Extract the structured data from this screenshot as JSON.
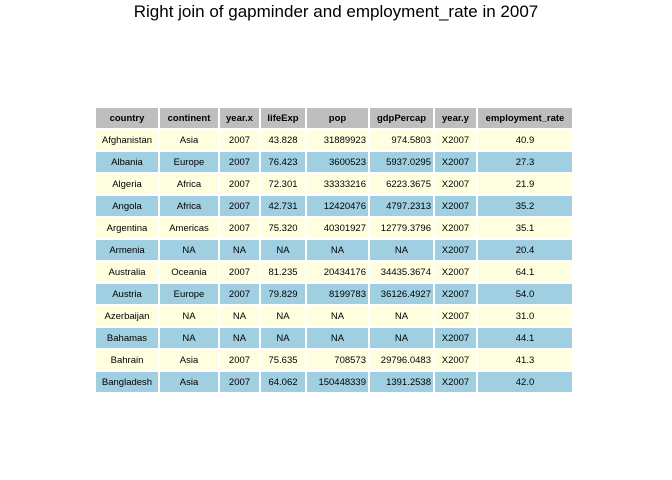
{
  "title": "Right join of gapminder and employment_rate in 2007",
  "columns": [
    "country",
    "continent",
    "year.x",
    "lifeExp",
    "pop",
    "gdpPercap",
    "year.y",
    "employment_rate"
  ],
  "rows": [
    [
      "Afghanistan",
      "Asia",
      "2007",
      "43.828",
      "31889923",
      "974.5803",
      "X2007",
      "40.9"
    ],
    [
      "Albania",
      "Europe",
      "2007",
      "76.423",
      "3600523",
      "5937.0295",
      "X2007",
      "27.3"
    ],
    [
      "Algeria",
      "Africa",
      "2007",
      "72.301",
      "33333216",
      "6223.3675",
      "X2007",
      "21.9"
    ],
    [
      "Angola",
      "Africa",
      "2007",
      "42.731",
      "12420476",
      "4797.2313",
      "X2007",
      "35.2"
    ],
    [
      "Argentina",
      "Americas",
      "2007",
      "75.320",
      "40301927",
      "12779.3796",
      "X2007",
      "35.1"
    ],
    [
      "Armenia",
      "NA",
      "NA",
      "NA",
      "NA",
      "NA",
      "X2007",
      "20.4"
    ],
    [
      "Australia",
      "Oceania",
      "2007",
      "81.235",
      "20434176",
      "34435.3674",
      "X2007",
      "64.1"
    ],
    [
      "Austria",
      "Europe",
      "2007",
      "79.829",
      "8199783",
      "36126.4927",
      "X2007",
      "54.0"
    ],
    [
      "Azerbaijan",
      "NA",
      "NA",
      "NA",
      "NA",
      "NA",
      "X2007",
      "31.0"
    ],
    [
      "Bahamas",
      "NA",
      "NA",
      "NA",
      "NA",
      "NA",
      "X2007",
      "44.1"
    ],
    [
      "Bahrain",
      "Asia",
      "2007",
      "75.635",
      "708573",
      "29796.0483",
      "X2007",
      "41.3"
    ],
    [
      "Bangladesh",
      "Asia",
      "2007",
      "64.062",
      "150448339",
      "1391.2538",
      "X2007",
      "42.0"
    ]
  ],
  "colors": {
    "header_bg": "#bebebe",
    "row_odd_bg": "#ffffe0",
    "row_even_bg": "#9fcfe0"
  }
}
